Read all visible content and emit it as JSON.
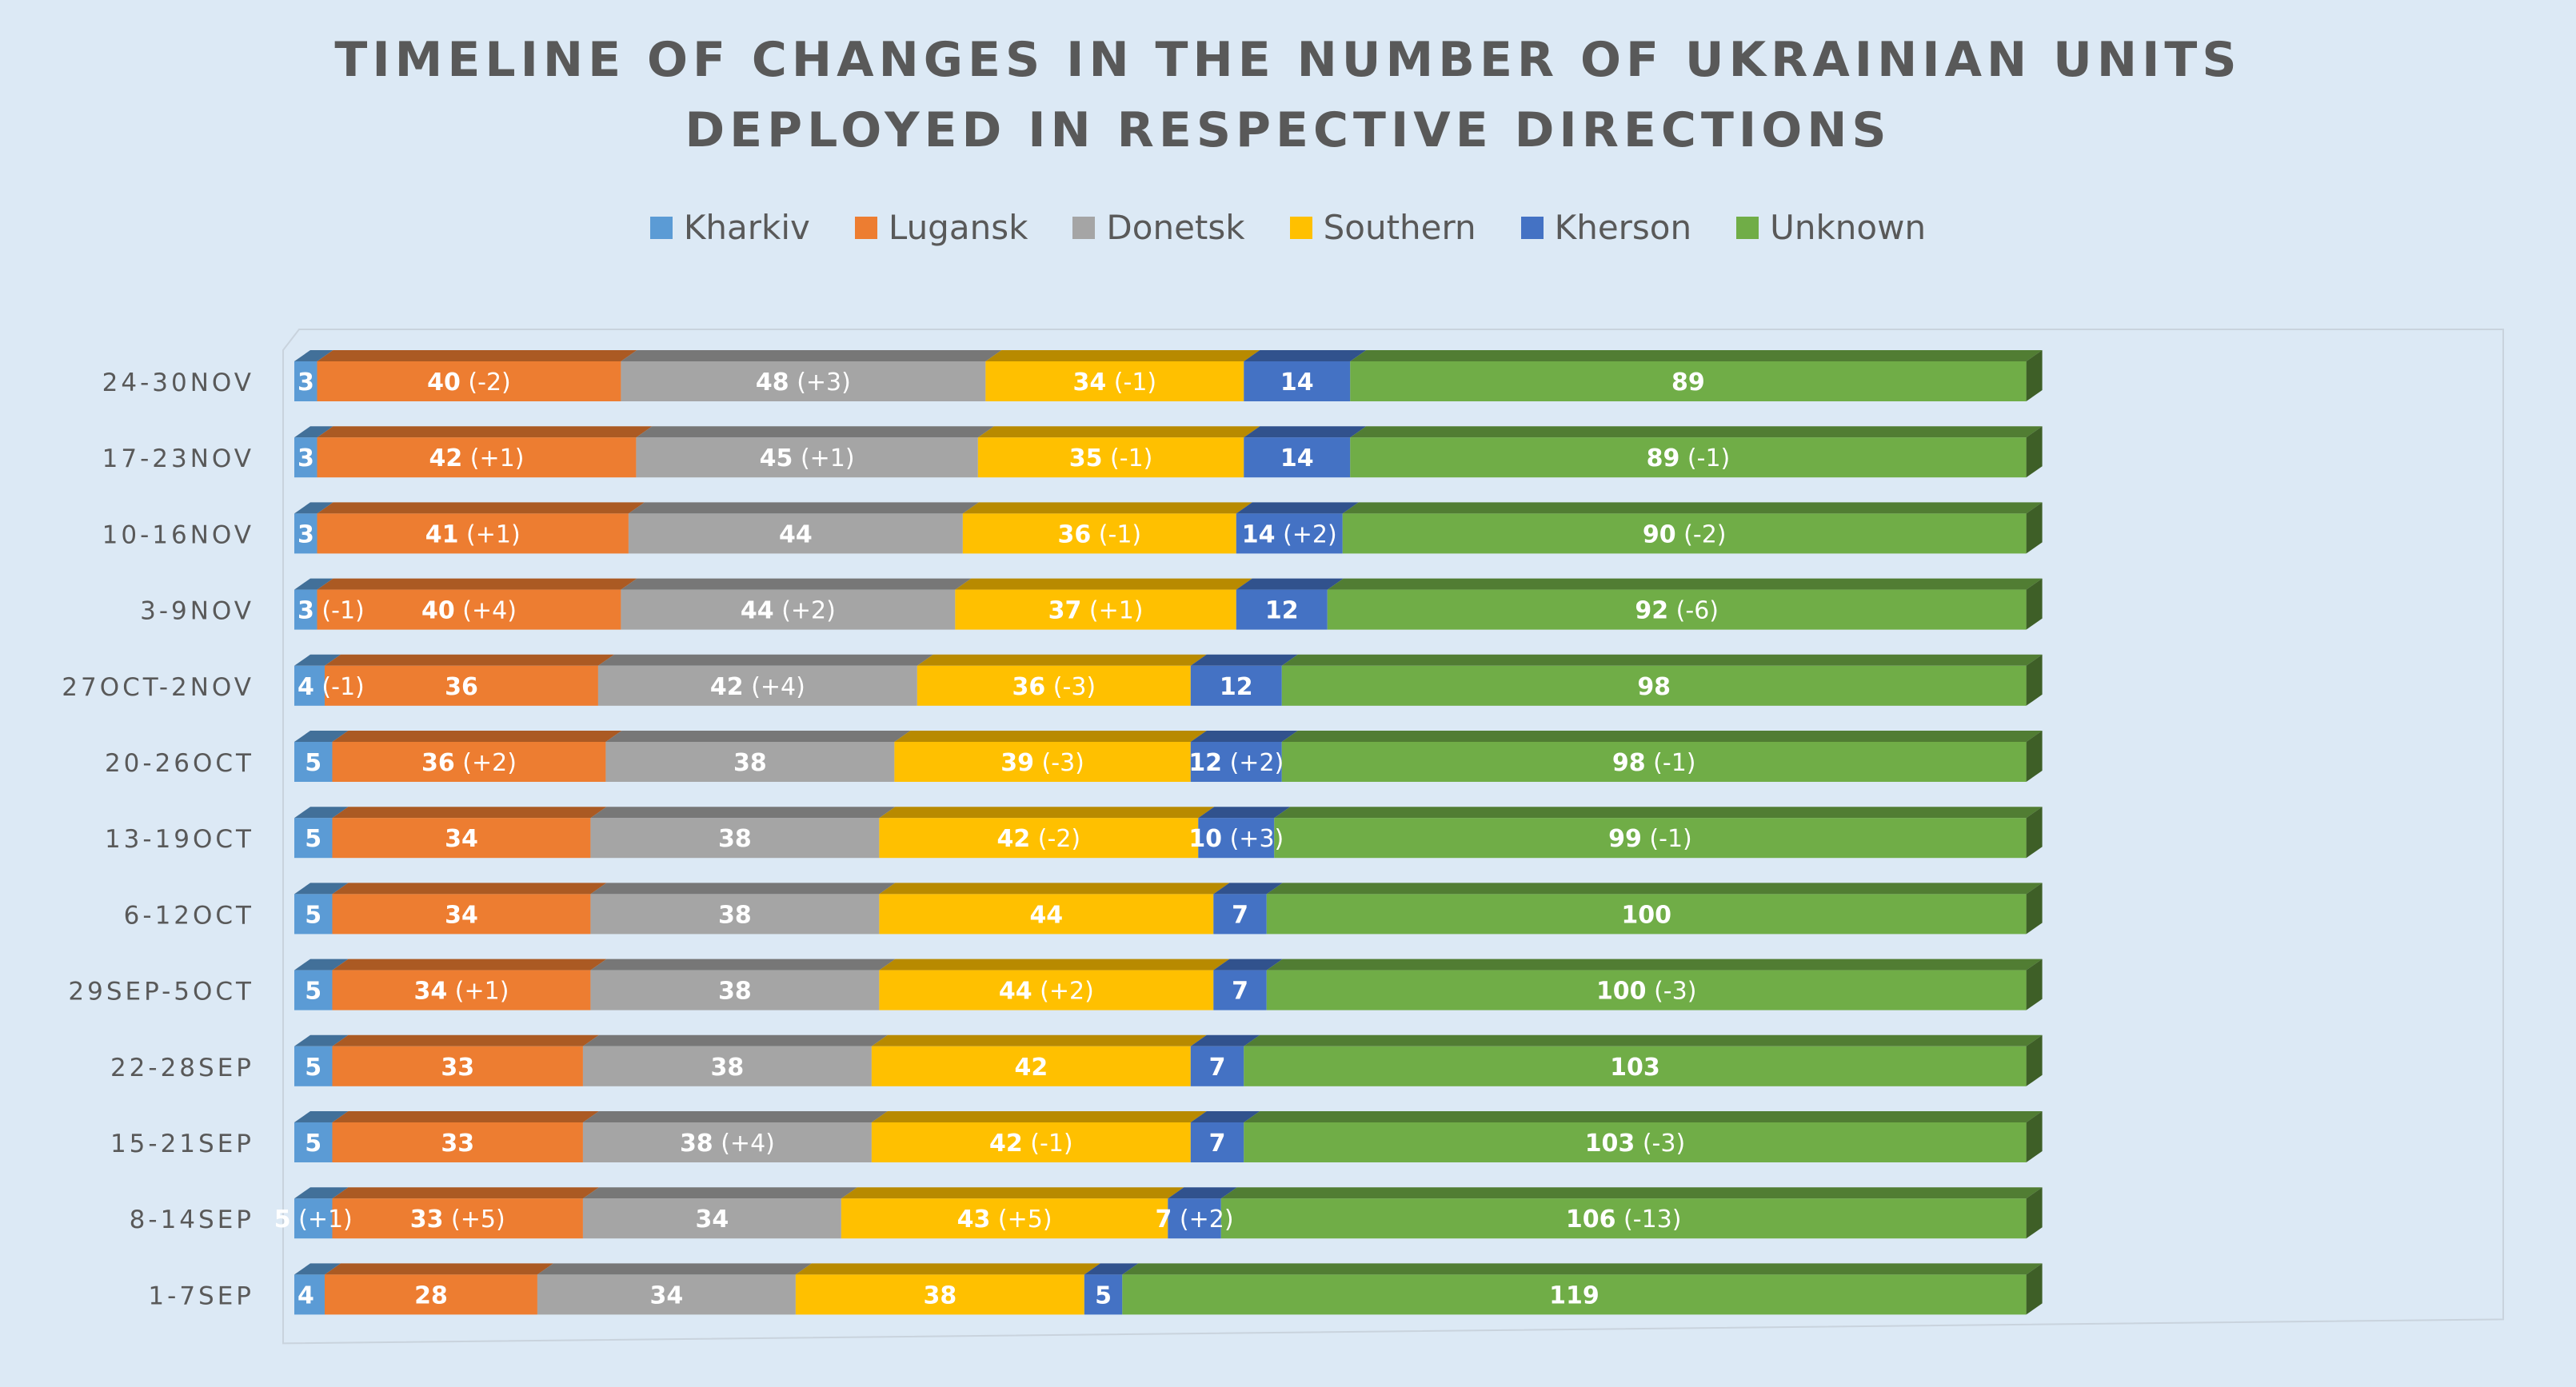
{
  "chart_data": {
    "type": "bar",
    "orientation": "horizontal",
    "stacked": true,
    "three_d": true,
    "title_lines": [
      "TIMELINE OF CHANGES IN THE NUMBER OF UKRAINIAN UNITS",
      "DEPLOYED IN RESPECTIVE DIRECTIONS"
    ],
    "legend_position": "top",
    "xlim": [
      0,
      287
    ],
    "categories": [
      "24-30NOV",
      "17-23NOV",
      "10-16NOV",
      "3-9NOV",
      "27OCT-2NOV",
      "20-26OCT",
      "13-19OCT",
      "6-12OCT",
      "29SEP-5OCT",
      "22-28SEP",
      "15-21SEP",
      "8-14SEP",
      "1-7SEP"
    ],
    "series": [
      {
        "name": "Kharkiv",
        "color": "#5b9bd5",
        "values": [
          3,
          3,
          3,
          3,
          4,
          5,
          5,
          5,
          5,
          5,
          5,
          5,
          4
        ],
        "changes": [
          "",
          "",
          "",
          "(-1)",
          "(-1)",
          "",
          "",
          "",
          "",
          "",
          "",
          "(+1)",
          ""
        ]
      },
      {
        "name": "Lugansk",
        "color": "#ed7d31",
        "values": [
          40,
          42,
          41,
          40,
          36,
          36,
          34,
          34,
          34,
          33,
          33,
          33,
          28
        ],
        "changes": [
          "(-2)",
          "(+1)",
          "(+1)",
          "(+4)",
          "",
          "(+2)",
          "",
          "",
          "(+1)",
          "",
          "",
          "(+5)",
          ""
        ]
      },
      {
        "name": "Donetsk",
        "color": "#a5a5a5",
        "values": [
          48,
          45,
          44,
          44,
          42,
          38,
          38,
          38,
          38,
          38,
          38,
          34,
          34
        ],
        "changes": [
          "(+3)",
          "(+1)",
          "",
          "(+2)",
          "(+4)",
          "",
          "",
          "",
          "",
          "",
          "(+4)",
          "",
          ""
        ]
      },
      {
        "name": "Southern",
        "color": "#ffc000",
        "values": [
          34,
          35,
          36,
          37,
          36,
          39,
          42,
          44,
          44,
          42,
          42,
          43,
          38
        ],
        "changes": [
          "(-1)",
          "(-1)",
          "(-1)",
          "(+1)",
          "(-3)",
          "(-3)",
          "(-2)",
          "",
          "(+2)",
          "",
          "(-1)",
          "(+5)",
          ""
        ]
      },
      {
        "name": "Kherson",
        "color": "#4472c4",
        "values": [
          14,
          14,
          14,
          12,
          12,
          12,
          10,
          7,
          7,
          7,
          7,
          7,
          5
        ],
        "changes": [
          "",
          "",
          "(+2)",
          "",
          "",
          "(+2)",
          "(+3)",
          "",
          "",
          "",
          "",
          "(+2)",
          ""
        ]
      },
      {
        "name": "Unknown",
        "color": "#70ad47",
        "values": [
          89,
          89,
          90,
          92,
          98,
          98,
          99,
          100,
          100,
          103,
          103,
          106,
          119
        ],
        "changes": [
          "",
          "(-1)",
          "(-2)",
          "(-6)",
          "",
          "(-1)",
          "(-1)",
          "",
          "(-3)",
          "",
          "(-3)",
          "(-13)",
          ""
        ]
      }
    ]
  }
}
